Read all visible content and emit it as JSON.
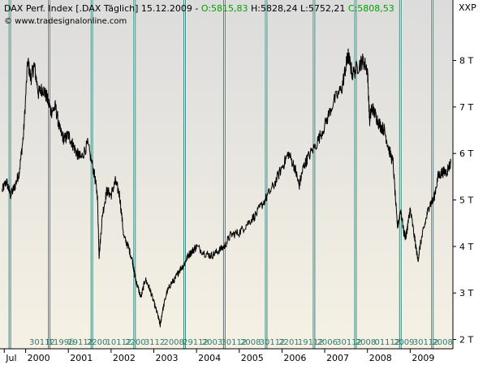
{
  "header": {
    "segments": [
      {
        "text": "DAX Perf. Index [.DAX  Täglich] 15.12.2009 - ",
        "color": "#000000"
      },
      {
        "text": "O:5815,83",
        "color": "#00a000"
      },
      {
        "text": " H:5828,24 L:5752,21 ",
        "color": "#000000"
      },
      {
        "text": "C:5808,53",
        "color": "#00a000"
      }
    ],
    "watermark": "© www.tradesignalonline.com",
    "symbol_label": "XXP"
  },
  "colors": {
    "price_line": "#000000",
    "event_line": "#2e7d6f",
    "event_line_outline": "#ffffff",
    "background_top": "#dcdcdc",
    "background_bottom": "#f6f1e4",
    "accent_green": "#00a000"
  },
  "chart_data": {
    "type": "line",
    "title": "DAX Perf. Index [.DAX  Täglich] 15.12.2009",
    "xlabel": "",
    "ylabel": "",
    "xlim": [
      1999.4,
      2010.0
    ],
    "ylim": [
      1800,
      9300
    ],
    "grid": false,
    "y_ticks": [
      {
        "value": 2000,
        "label": "2 T"
      },
      {
        "value": 3000,
        "label": "3 T"
      },
      {
        "value": 4000,
        "label": "4 T"
      },
      {
        "value": 5000,
        "label": "5 T"
      },
      {
        "value": 6000,
        "label": "6 T"
      },
      {
        "value": 7000,
        "label": "7 T"
      },
      {
        "value": 8000,
        "label": "8 T"
      }
    ],
    "x_ticks": [
      {
        "value": 1999.5,
        "label": "Jul"
      },
      {
        "value": 2000.0,
        "label": "2000"
      },
      {
        "value": 2001.0,
        "label": "2001"
      },
      {
        "value": 2002.0,
        "label": "2002"
      },
      {
        "value": 2003.0,
        "label": "2003"
      },
      {
        "value": 2004.0,
        "label": "2004"
      },
      {
        "value": 2005.0,
        "label": "2005"
      },
      {
        "value": 2006.0,
        "label": "2006"
      },
      {
        "value": 2007.0,
        "label": "2007"
      },
      {
        "value": 2008.0,
        "label": "2008"
      },
      {
        "value": 2009.0,
        "label": "2009"
      }
    ],
    "series": [
      {
        "x": [
          1999.45,
          1999.55,
          1999.65,
          1999.75,
          1999.85,
          1999.95,
          2000.05,
          2000.12,
          2000.2,
          2000.3,
          2000.4,
          2000.5,
          2000.6,
          2000.7,
          2000.8,
          2000.9,
          2001.0,
          2001.1,
          2001.2,
          2001.3,
          2001.45,
          2001.6,
          2001.68,
          2001.72,
          2001.8,
          2001.9,
          2002.0,
          2002.1,
          2002.2,
          2002.3,
          2002.4,
          2002.5,
          2002.55,
          2002.6,
          2002.7,
          2002.8,
          2002.9,
          2003.0,
          2003.1,
          2003.15,
          2003.2,
          2003.3,
          2003.4,
          2003.5,
          2003.6,
          2003.7,
          2003.8,
          2003.9,
          2004.0,
          2004.2,
          2004.35,
          2004.5,
          2004.65,
          2004.8,
          2005.0,
          2005.2,
          2005.4,
          2005.6,
          2005.8,
          2006.0,
          2006.15,
          2006.3,
          2006.4,
          2006.5,
          2006.6,
          2006.8,
          2007.0,
          2007.2,
          2007.4,
          2007.5,
          2007.55,
          2007.65,
          2007.8,
          2007.9,
          2008.0,
          2008.05,
          2008.1,
          2008.2,
          2008.3,
          2008.4,
          2008.5,
          2008.6,
          2008.7,
          2008.78,
          2008.85,
          2008.9,
          2008.95,
          2009.0,
          2009.1,
          2009.18,
          2009.25,
          2009.35,
          2009.45,
          2009.55,
          2009.65,
          2009.75,
          2009.85,
          2009.95
        ],
        "values": [
          5200,
          5400,
          5100,
          5300,
          5600,
          6400,
          8000,
          7600,
          7900,
          7300,
          7400,
          7200,
          6900,
          7000,
          6500,
          6300,
          6400,
          6200,
          6000,
          5900,
          6200,
          5600,
          5100,
          3800,
          4700,
          5200,
          5100,
          5400,
          5100,
          4200,
          4000,
          3700,
          3400,
          3200,
          2900,
          3300,
          3100,
          2800,
          2500,
          2300,
          2600,
          3000,
          3200,
          3300,
          3500,
          3600,
          3800,
          3900,
          4000,
          3850,
          3800,
          3900,
          4000,
          4250,
          4300,
          4500,
          4700,
          5000,
          5300,
          5700,
          6000,
          5700,
          5300,
          5700,
          5900,
          6200,
          6600,
          7100,
          7400,
          7900,
          8100,
          7700,
          7900,
          8000,
          7800,
          6700,
          7000,
          6800,
          6600,
          6500,
          6100,
          5800,
          4400,
          4800,
          4300,
          4200,
          4500,
          4800,
          4200,
          3700,
          4100,
          4500,
          4900,
          5000,
          5500,
          5600,
          5600,
          5800
        ]
      }
    ],
    "event_lines_x": [
      1999.63,
      2000.55,
      2001.55,
      2002.55,
      2003.72,
      2004.65,
      2005.63,
      2006.75,
      2007.72,
      2008.77,
      2009.52
    ]
  },
  "axis_legend": {
    "band_labels": [
      "30112",
      "1199ü",
      "29112",
      "2200",
      "10112",
      "2200",
      "3112",
      "2008",
      "29112",
      "2003",
      "30112",
      "2008",
      "30112",
      "2201",
      "19112",
      "2006",
      "30112",
      "2008",
      "01112",
      "2009",
      "30112",
      "2008"
    ]
  }
}
